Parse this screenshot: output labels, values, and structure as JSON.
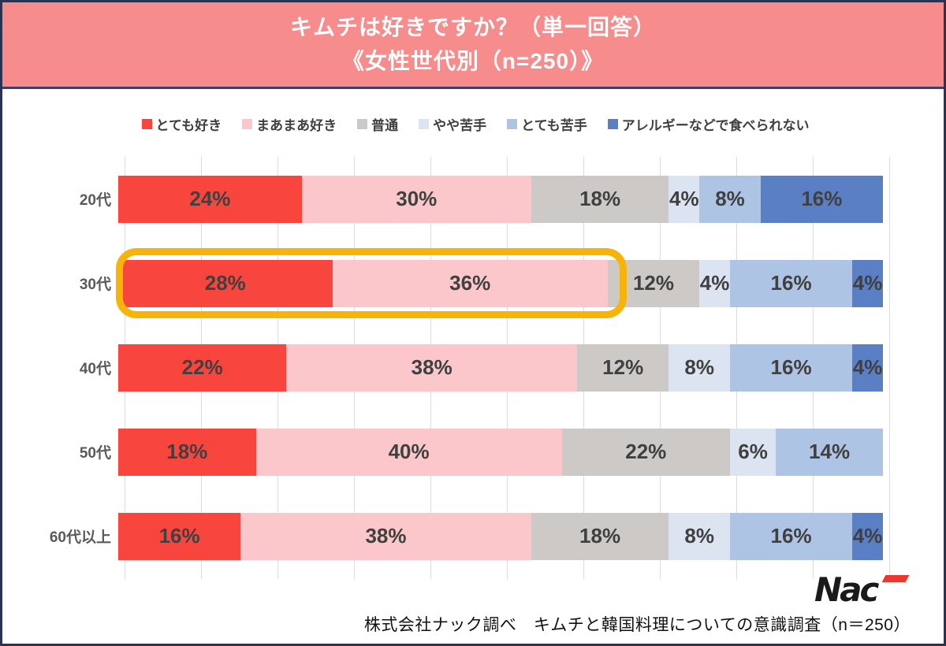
{
  "header": {
    "title_line1": "キムチは好きですか？（単一回答）",
    "title_line2": "《女性世代別（n=250）》",
    "bg_color": "#F68C8C",
    "text_color": "#FFFFFF"
  },
  "chart_data": {
    "type": "bar",
    "stacked": true,
    "orientation": "horizontal",
    "unit": "%",
    "xlim": [
      0,
      100
    ],
    "gridline_step": 10,
    "grid": true,
    "legend_position": "top",
    "categories": [
      "20代",
      "30代",
      "40代",
      "50代",
      "60代以上"
    ],
    "series": [
      {
        "name": "とても好き",
        "color": "#F8463F",
        "values": [
          24,
          28,
          22,
          18,
          16
        ]
      },
      {
        "name": "まあまあ好き",
        "color": "#FBC7CB",
        "values": [
          30,
          36,
          38,
          40,
          38
        ]
      },
      {
        "name": "普通",
        "color": "#CCC9C7",
        "values": [
          18,
          12,
          12,
          22,
          18
        ]
      },
      {
        "name": "やや苦手",
        "color": "#DCE4F2",
        "values": [
          4,
          4,
          8,
          6,
          8
        ]
      },
      {
        "name": "とても苦手",
        "color": "#AEC4E5",
        "values": [
          8,
          16,
          16,
          14,
          16
        ]
      },
      {
        "name": "アレルギーなどで食べられない",
        "color": "#5A7FC4",
        "values": [
          16,
          4,
          4,
          0,
          4
        ]
      }
    ],
    "highlight": {
      "category": "30代",
      "segments": [
        "とても好き",
        "まあまあ好き"
      ],
      "combined_value": 64,
      "color": "#F6B40B"
    }
  },
  "footer": {
    "logo_text": "Nac",
    "source_text": "株式会社ナック調べ　キムチと韓国料理についての意識調査（n＝250）"
  }
}
